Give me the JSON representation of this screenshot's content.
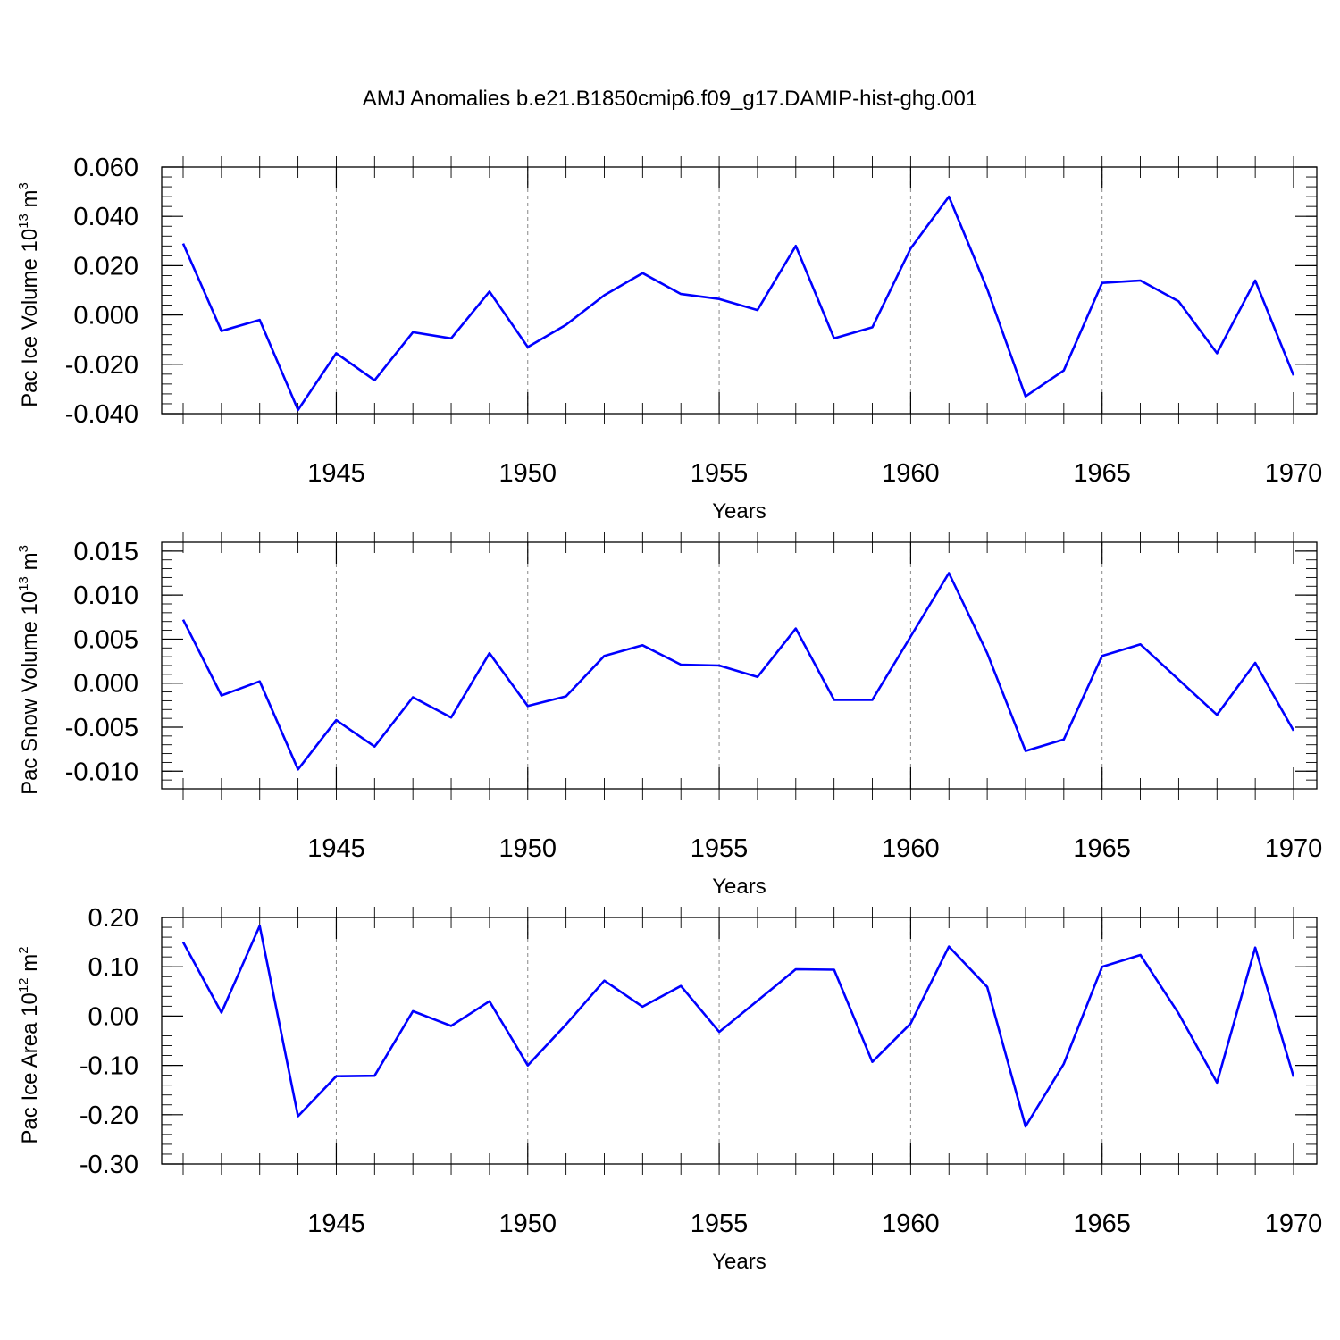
{
  "title": "AMJ Anomalies b.e21.B1850cmip6.f09_g17.DAMIP-hist-ghg.001",
  "colors": {
    "series": "#0000ff",
    "axis": "#000000",
    "grid": "#888888"
  },
  "chart_data": [
    {
      "type": "line",
      "xlabel": "Years",
      "ylabel": "Pac Ice Volume 10",
      "ylabel_sup1": "13",
      "ylabel_mid": " m",
      "ylabel_sup2": "3",
      "xlim": [
        1941,
        1970
      ],
      "ylim": [
        -0.04,
        0.06
      ],
      "yticks": [
        "0.060",
        "0.040",
        "0.020",
        "0.000",
        "-0.020",
        "-0.040"
      ],
      "yticks_values": [
        0.06,
        0.04,
        0.02,
        0.0,
        -0.02,
        -0.04
      ],
      "xticks": [
        "1945",
        "1950",
        "1955",
        "1960",
        "1965",
        "1970"
      ],
      "xticks_values": [
        1945,
        1950,
        1955,
        1960,
        1965,
        1970
      ],
      "grid": "vertical dashed at major x ticks",
      "x": [
        1941,
        1942,
        1943,
        1944,
        1945,
        1946,
        1947,
        1948,
        1949,
        1950,
        1951,
        1952,
        1953,
        1954,
        1955,
        1956,
        1957,
        1958,
        1959,
        1960,
        1961,
        1962,
        1963,
        1964,
        1965,
        1966,
        1967,
        1968,
        1969,
        1970
      ],
      "values": [
        0.029,
        -0.0065,
        -0.002,
        -0.0385,
        -0.0155,
        -0.0265,
        -0.007,
        -0.0095,
        0.0095,
        -0.013,
        -0.004,
        0.008,
        0.017,
        0.0085,
        0.0065,
        0.002,
        0.028,
        -0.0095,
        -0.005,
        0.027,
        0.048,
        0.0105,
        -0.033,
        -0.0225,
        0.013,
        0.014,
        0.0055,
        -0.0155,
        0.014,
        -0.0245
      ]
    },
    {
      "type": "line",
      "xlabel": "Years",
      "ylabel": "Pac Snow Volume 10",
      "ylabel_sup1": "13",
      "ylabel_mid": " m",
      "ylabel_sup2": "3",
      "xlim": [
        1941,
        1970
      ],
      "ylim": [
        -0.012,
        0.016
      ],
      "yticks": [
        "0.015",
        "0.010",
        "0.005",
        "0.000",
        "-0.005",
        "-0.010"
      ],
      "yticks_values": [
        0.015,
        0.01,
        0.005,
        0.0,
        -0.005,
        -0.01
      ],
      "xticks": [
        "1945",
        "1950",
        "1955",
        "1960",
        "1965",
        "1970"
      ],
      "xticks_values": [
        1945,
        1950,
        1955,
        1960,
        1965,
        1970
      ],
      "grid": "vertical dashed at major x ticks",
      "x": [
        1941,
        1942,
        1943,
        1944,
        1945,
        1946,
        1947,
        1948,
        1949,
        1950,
        1951,
        1952,
        1953,
        1954,
        1955,
        1956,
        1957,
        1958,
        1959,
        1960,
        1961,
        1962,
        1963,
        1964,
        1965,
        1966,
        1967,
        1968,
        1969,
        1970
      ],
      "values": [
        0.0072,
        -0.0014,
        0.0002,
        -0.0098,
        -0.0042,
        -0.0072,
        -0.0016,
        -0.0039,
        0.0034,
        -0.0026,
        -0.0015,
        0.0031,
        0.0043,
        0.0021,
        0.002,
        0.0007,
        0.0062,
        -0.0019,
        -0.0019,
        0.0053,
        0.0125,
        0.0034,
        -0.0077,
        -0.0064,
        0.0031,
        0.0044,
        0.0004,
        -0.0036,
        0.0023,
        -0.0054
      ]
    },
    {
      "type": "line",
      "xlabel": "Years",
      "ylabel": "Pac Ice Area 10",
      "ylabel_sup1": "12",
      "ylabel_mid": " m",
      "ylabel_sup2": "2",
      "xlim": [
        1941,
        1970
      ],
      "ylim": [
        -0.3,
        0.2
      ],
      "yticks": [
        "0.20",
        "0.10",
        "0.00",
        "-0.10",
        "-0.20",
        "-0.30"
      ],
      "yticks_values": [
        0.2,
        0.1,
        0.0,
        -0.1,
        -0.2,
        -0.3
      ],
      "xticks": [
        "1945",
        "1950",
        "1955",
        "1960",
        "1965",
        "1970"
      ],
      "xticks_values": [
        1945,
        1950,
        1955,
        1960,
        1965,
        1970
      ],
      "grid": "vertical dashed at major x ticks",
      "x": [
        1941,
        1942,
        1943,
        1944,
        1945,
        1946,
        1947,
        1948,
        1949,
        1950,
        1951,
        1952,
        1953,
        1954,
        1955,
        1956,
        1957,
        1958,
        1959,
        1960,
        1961,
        1962,
        1963,
        1964,
        1965,
        1966,
        1967,
        1968,
        1969,
        1970
      ],
      "values": [
        0.15,
        0.007,
        0.183,
        -0.203,
        -0.122,
        -0.121,
        0.01,
        -0.02,
        0.03,
        -0.1,
        -0.017,
        0.072,
        0.019,
        0.061,
        -0.032,
        0.031,
        0.095,
        0.094,
        -0.093,
        -0.015,
        0.141,
        0.059,
        -0.224,
        -0.097,
        0.1,
        0.124,
        0.005,
        -0.135,
        0.139,
        -0.123
      ]
    }
  ]
}
